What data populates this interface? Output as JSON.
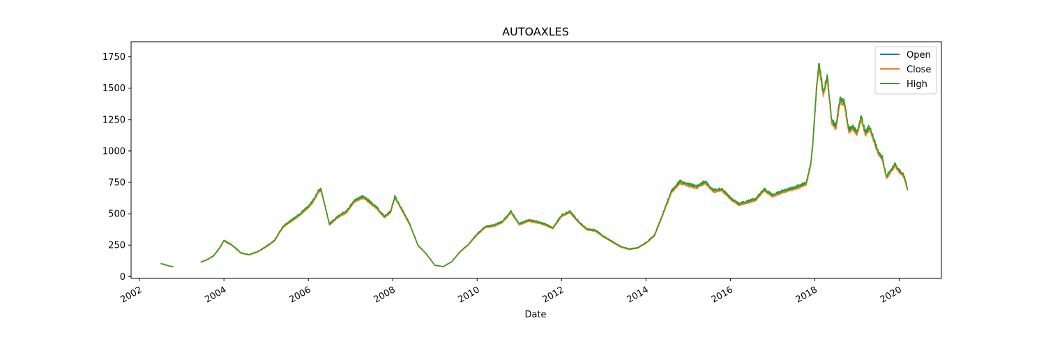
{
  "chart_data": {
    "type": "line",
    "title": "AUTOAXLES",
    "xlabel": "Date",
    "ylabel": "",
    "xlim": [
      2001.8,
      2021.0
    ],
    "ylim": [
      -15,
      1870
    ],
    "x_ticks": [
      2002,
      2004,
      2006,
      2008,
      2010,
      2012,
      2014,
      2016,
      2018,
      2020
    ],
    "y_ticks": [
      0,
      250,
      500,
      750,
      1000,
      1250,
      1500,
      1750
    ],
    "grid": false,
    "legend_position": "top-right",
    "colors": {
      "Open": "#1f77b4",
      "Close": "#ff7f0e",
      "High": "#2ca02c"
    },
    "segments": [
      {
        "x": [
          2002.5,
          2002.6,
          2002.7,
          2002.8
        ],
        "y": [
          105,
          95,
          85,
          78
        ]
      },
      {
        "x": [
          2003.45,
          2003.6,
          2003.75,
          2003.9,
          2004.0,
          2004.2,
          2004.4,
          2004.6,
          2004.8,
          2005.0,
          2005.2,
          2005.4,
          2005.6,
          2005.8,
          2006.0,
          2006.1,
          2006.25,
          2006.3,
          2006.45,
          2006.5,
          2006.7,
          2006.9,
          2007.1,
          2007.3,
          2007.6,
          2007.8,
          2007.95,
          2008.05,
          2008.2,
          2008.4,
          2008.6,
          2008.8,
          2009.0,
          2009.2,
          2009.4,
          2009.6,
          2009.8,
          2010.0,
          2010.2,
          2010.4,
          2010.6,
          2010.8,
          2010.9,
          2011.0,
          2011.2,
          2011.4,
          2011.6,
          2011.8,
          2012.0,
          2012.2,
          2012.4,
          2012.6,
          2012.8,
          2013.0,
          2013.2,
          2013.4,
          2013.6,
          2013.8,
          2014.0,
          2014.2,
          2014.4,
          2014.6,
          2014.8,
          2015.0,
          2015.2,
          2015.4,
          2015.6,
          2015.8,
          2016.0,
          2016.2,
          2016.4,
          2016.6,
          2016.8,
          2017.0,
          2017.2,
          2017.4,
          2017.6,
          2017.8,
          2017.9,
          2017.95,
          2018.05,
          2018.1,
          2018.2,
          2018.3,
          2018.4,
          2018.5,
          2018.6,
          2018.7,
          2018.8,
          2018.9,
          2019.0,
          2019.1,
          2019.2,
          2019.3,
          2019.5,
          2019.6,
          2019.7,
          2019.8,
          2019.9,
          2020.0,
          2020.1,
          2020.2
        ],
        "y": [
          115,
          135,
          165,
          230,
          290,
          250,
          190,
          175,
          200,
          240,
          290,
          400,
          450,
          500,
          560,
          600,
          690,
          700,
          490,
          420,
          480,
          520,
          610,
          640,
          560,
          480,
          520,
          640,
          550,
          420,
          250,
          180,
          90,
          80,
          120,
          200,
          260,
          340,
          400,
          410,
          440,
          520,
          470,
          420,
          450,
          440,
          420,
          390,
          490,
          520,
          440,
          380,
          370,
          320,
          280,
          240,
          220,
          230,
          270,
          330,
          500,
          680,
          760,
          740,
          720,
          760,
          690,
          700,
          630,
          580,
          600,
          620,
          700,
          650,
          680,
          700,
          720,
          750,
          900,
          1050,
          1550,
          1700,
          1480,
          1600,
          1250,
          1200,
          1420,
          1400,
          1180,
          1200,
          1150,
          1280,
          1150,
          1200,
          1000,
          950,
          800,
          850,
          900,
          850,
          820,
          700
        ]
      }
    ]
  },
  "legend": {
    "items": [
      {
        "label": "Open",
        "color": "#1f77b4"
      },
      {
        "label": "Close",
        "color": "#ff7f0e"
      },
      {
        "label": "High",
        "color": "#2ca02c"
      }
    ]
  }
}
